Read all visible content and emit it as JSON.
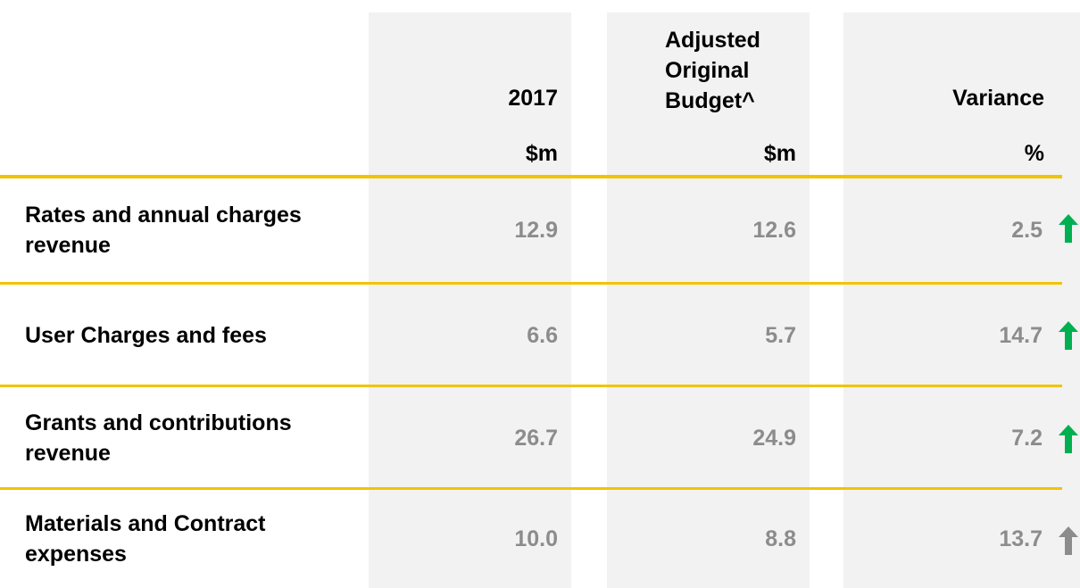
{
  "table": {
    "columns": [
      "2017",
      "Adjusted Original Budget^",
      "Variance"
    ],
    "units": [
      "$m",
      "$m",
      "%"
    ],
    "rows": [
      [
        "Rates and annual charges revenue",
        "12.9",
        "12.6",
        "2.5"
      ],
      [
        "User Charges and fees",
        "6.6",
        "5.7",
        "14.7"
      ],
      [
        "Grants and contributions revenue",
        "26.7",
        "24.9",
        "7.2"
      ],
      [
        "Materials and Contract expenses",
        "10.0",
        "8.8",
        "13.7"
      ]
    ]
  }
}
